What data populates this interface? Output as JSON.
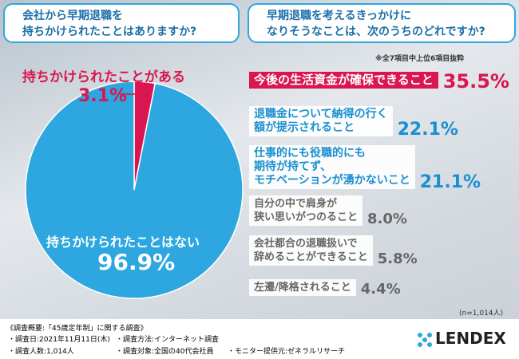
{
  "chart_data": [
    {
      "type": "pie",
      "title": "会社から早期退職を\n持ちかけられたことはありますか?",
      "categories": [
        "持ちかけられたことがある",
        "持ちかけられたことはない"
      ],
      "values": [
        3.1,
        96.9
      ],
      "value_labels": [
        "3.1%",
        "96.9%"
      ],
      "colors": [
        "#d9164f",
        "#2ea7e0"
      ]
    },
    {
      "type": "ranking",
      "title": "早期退職を考えるきっかけに\nなりそうなことは、次のうちのどれですか?",
      "note": "※全7項目中上位6項目抜粋",
      "categories": [
        "今後の生活資金が確保できること",
        "退職金について納得の行く\n額が提示されること",
        "仕事的にも役職的にも\n期待が持てず、\nモチベーションが湧かないこと",
        "自分の中で肩身が\n狭い思いがつのること",
        "会社都合の退職扱いで\n辞めることができること",
        "左遷/降格されること"
      ],
      "values": [
        35.5,
        22.1,
        21.1,
        8.0,
        5.8,
        4.4
      ],
      "value_labels": [
        "35.5%",
        "22.1%",
        "21.1%",
        "8.0%",
        "5.8%",
        "4.4%"
      ],
      "colors": [
        "#d9164f",
        "#1a8fd0",
        "#1a8fd0",
        "#666666",
        "#666666",
        "#666666"
      ],
      "sample": "(n=1,014人)"
    }
  ],
  "footer": {
    "heading": "《調査概要:「45歳定年制」に関する調査》",
    "items": [
      "・調査日:2021年11月11日(木)",
      "・調査方法:インターネット調査",
      "・調査人数:1,014人",
      "・調査対象:全国の40代会社員",
      "・モニター提供元:ゼネラルリサーチ"
    ],
    "logo": "LENDEX"
  }
}
